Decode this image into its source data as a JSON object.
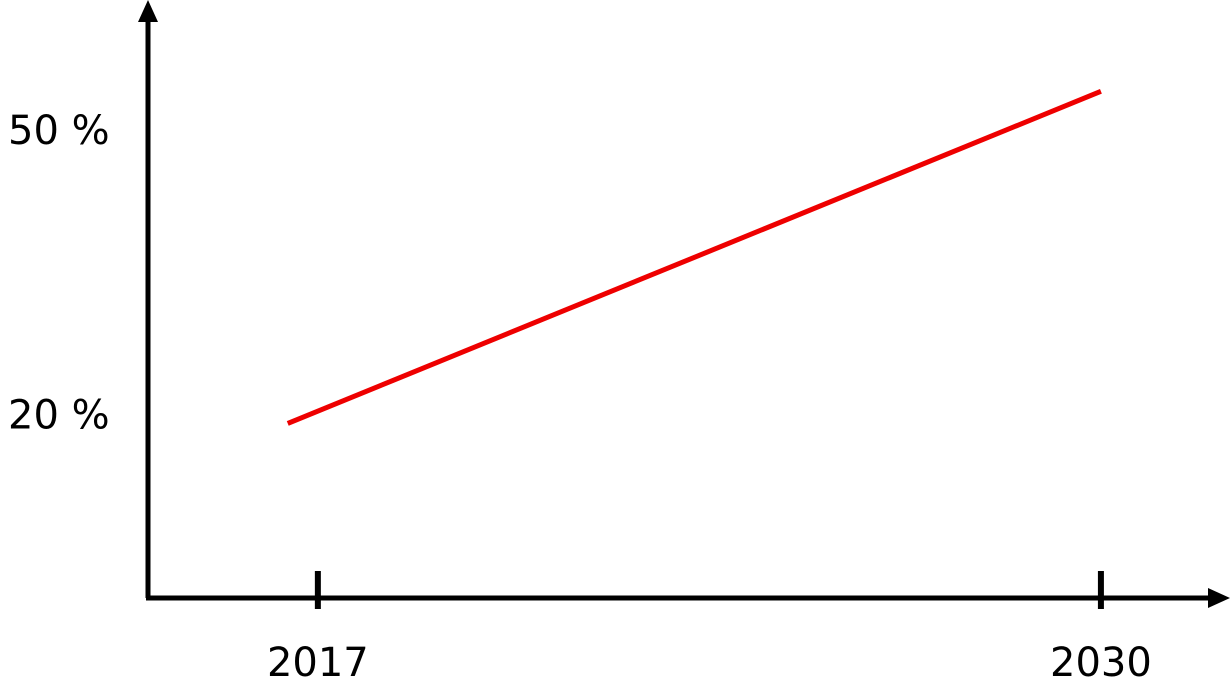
{
  "chart_data": {
    "type": "line",
    "x": [
      2016.5,
      2030
    ],
    "series": [
      {
        "color": "#ee0000",
        "values": [
          19.4,
          54.4
        ]
      }
    ],
    "xlim": [
      2014.18,
      2032.06
    ],
    "xticks": [
      2017,
      2030
    ],
    "ylim": [
      1,
      63.5
    ],
    "yticks": [
      {
        "value": 20,
        "label": "20 %"
      },
      {
        "value": 50,
        "label": "50 %"
      }
    ]
  }
}
